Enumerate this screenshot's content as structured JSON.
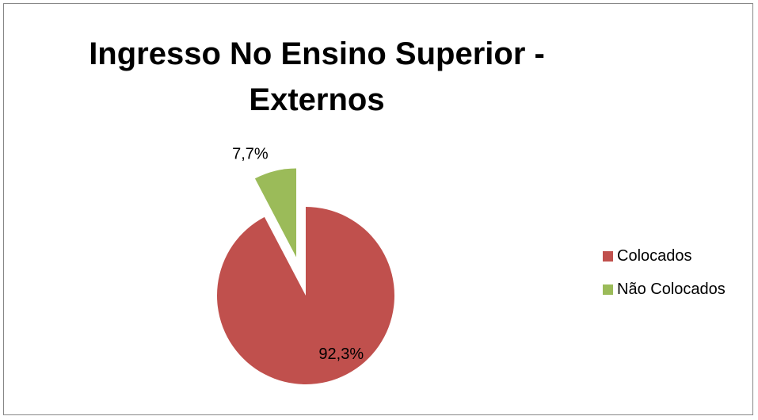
{
  "chart_data": {
    "type": "pie",
    "title_lines": [
      "Ingresso No Ensino Superior -",
      "Externos"
    ],
    "categories": [
      "Colocados",
      "Não Colocados"
    ],
    "values": [
      92.3,
      7.7
    ],
    "labels": [
      "92,3%",
      "7,7%"
    ],
    "colors": [
      "#C0504D",
      "#9BBB59"
    ],
    "exploded": [
      false,
      true
    ],
    "legend_position": "right"
  }
}
